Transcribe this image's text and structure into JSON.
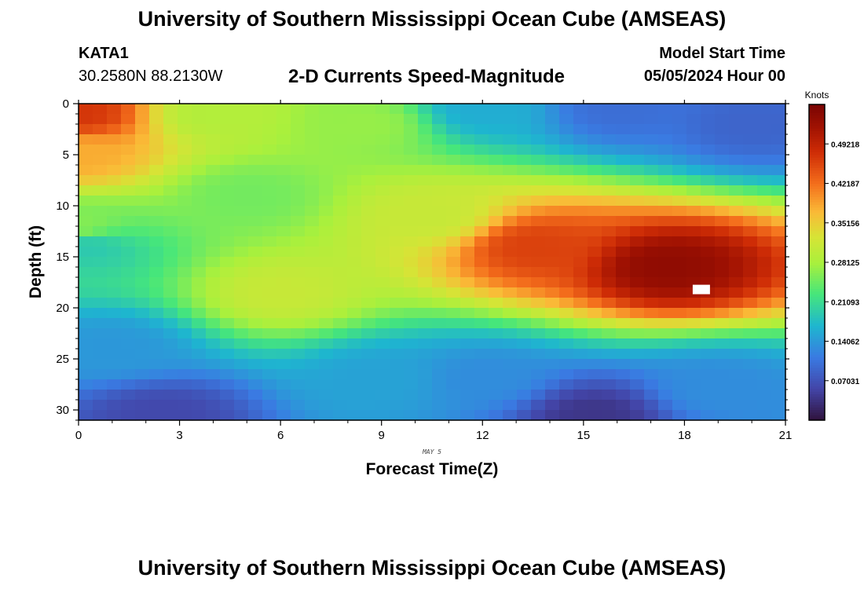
{
  "header": {
    "title": "University of Southern Mississippi Ocean Cube (AMSEAS)",
    "station": "KATA1",
    "coords": "30.2580N  88.2130W",
    "subtitle": "2-D Currents Speed-Magnitude",
    "model_start_label": "Model Start Time",
    "model_start_value": "05/05/2024 Hour 00"
  },
  "footer": {
    "title": "University of Southern Mississippi Ocean Cube (AMSEAS)"
  },
  "chart_data": {
    "type": "heatmap",
    "title": "2-D Currents Speed-Magnitude",
    "xlabel": "Forecast Time(Z)",
    "ylabel": "Depth (ft)",
    "date_label": "MAY 5",
    "xlim": [
      0,
      21
    ],
    "ylim": [
      31,
      0
    ],
    "xticks": [
      0,
      3,
      6,
      9,
      12,
      15,
      18,
      21
    ],
    "yticks": [
      0,
      5,
      10,
      15,
      20,
      25,
      30
    ],
    "colorbar": {
      "label": "Knots",
      "vmin": 0.0,
      "vmax": 0.5625,
      "ticks": [
        "0.07031",
        "0.14062",
        "0.21093",
        "0.28125",
        "0.35156",
        "0.42187",
        "0.49218"
      ],
      "tick_values": [
        0.07031,
        0.14062,
        0.21093,
        0.28125,
        0.35156,
        0.42187,
        0.49218
      ]
    },
    "grid": {
      "time_step_hours": 0.42,
      "depth_step_ft": 1.0
    },
    "features": [
      {
        "time_h": 0.0,
        "depth_ft": 1,
        "speed_kn": 0.47
      },
      {
        "time_h": 0.0,
        "depth_ft": 5,
        "speed_kn": 0.38
      },
      {
        "time_h": 0.0,
        "depth_ft": 12,
        "speed_kn": 0.26
      },
      {
        "time_h": 0.3,
        "depth_ft": 14,
        "speed_kn": 0.19
      },
      {
        "time_h": 1.0,
        "depth_ft": 24,
        "speed_kn": 0.14
      },
      {
        "time_h": 2.5,
        "depth_ft": 30.5,
        "speed_kn": 0.06
      },
      {
        "time_h": 4.0,
        "depth_ft": 1,
        "speed_kn": 0.29
      },
      {
        "time_h": 6.0,
        "depth_ft": 18.5,
        "speed_kn": 0.31
      },
      {
        "time_h": 5.0,
        "depth_ft": 9,
        "speed_kn": 0.25
      },
      {
        "time_h": 8.5,
        "depth_ft": 2,
        "speed_kn": 0.27
      },
      {
        "time_h": 12.0,
        "depth_ft": 0.5,
        "speed_kn": 0.16
      },
      {
        "time_h": 16.0,
        "depth_ft": 0.5,
        "speed_kn": 0.1
      },
      {
        "time_h": 20.0,
        "depth_ft": 2,
        "speed_kn": 0.09
      },
      {
        "time_h": 17.5,
        "depth_ft": 16,
        "speed_kn": 0.54
      },
      {
        "time_h": 13.5,
        "depth_ft": 14,
        "speed_kn": 0.46
      },
      {
        "time_h": 10.5,
        "depth_ft": 11,
        "speed_kn": 0.31
      },
      {
        "time_h": 15.3,
        "depth_ft": 30.5,
        "speed_kn": 0.04
      },
      {
        "time_h": 12.0,
        "depth_ft": 27,
        "speed_kn": 0.13
      },
      {
        "time_h": 19.0,
        "depth_ft": 28,
        "speed_kn": 0.13
      },
      {
        "time_h": 9.0,
        "depth_ft": 27,
        "speed_kn": 0.15
      }
    ],
    "max_marker": {
      "time_h": 18.5,
      "depth_ft": 18.2
    }
  }
}
